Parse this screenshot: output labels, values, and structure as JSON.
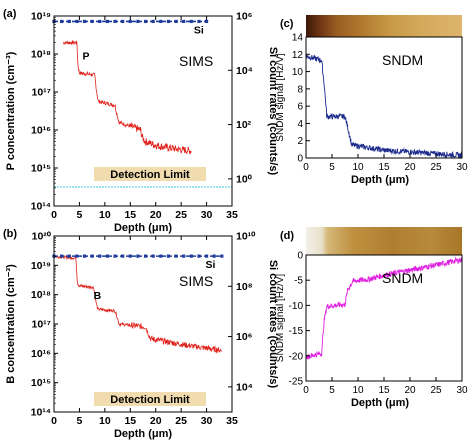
{
  "chart_data": [
    {
      "panel": "(a)",
      "type": "line",
      "in_plot_label": "SIMS",
      "xlabel": "Depth (μm)",
      "ylabel": "P concentration (cm⁻³)",
      "y2label": "Si count rates (counts/s)",
      "xlim": [
        0,
        35
      ],
      "ylim_log10": [
        14,
        19
      ],
      "y2lim_log10": [
        -1,
        6
      ],
      "x_ticks": [
        "0",
        "5",
        "10",
        "15",
        "20",
        "25",
        "30",
        "35"
      ],
      "y_ticks": [
        "10¹⁴",
        "10¹⁵",
        "10¹⁶",
        "10¹⁷",
        "10¹⁸",
        "10¹⁹"
      ],
      "y2_ticks": [
        "10⁰",
        "10²",
        "10⁴",
        "10⁶"
      ],
      "annotations": {
        "p_label": "P",
        "si_label": "Si",
        "detection": "Detection Limit"
      },
      "detection_limit_log10": 14.5,
      "series": [
        {
          "name": "P",
          "color": "#e0201a",
          "x": [
            1.8,
            4.5,
            4.7,
            5.0,
            8.0,
            8.3,
            8.7,
            12.0,
            12.3,
            12.8,
            17.0,
            17.4,
            17.9,
            20.0,
            24.0,
            27.0
          ],
          "y_log10": [
            18.3,
            18.3,
            17.7,
            17.5,
            17.45,
            17.1,
            16.75,
            16.65,
            16.45,
            16.2,
            16.0,
            15.8,
            15.7,
            15.6,
            15.5,
            15.45
          ]
        },
        {
          "name": "Si",
          "color": "#1f3c9c",
          "x": [
            0,
            30
          ],
          "y2_log10": [
            5.8,
            5.8
          ]
        }
      ]
    },
    {
      "panel": "(b)",
      "type": "line",
      "in_plot_label": "SIMS",
      "xlabel": "Depth (μm)",
      "ylabel": "B concentration (cm⁻³)",
      "y2label": "Si count rates (counts/s)",
      "xlim": [
        0,
        35
      ],
      "ylim_log10": [
        14,
        20
      ],
      "y2lim_log10": [
        3,
        10
      ],
      "x_ticks": [
        "0",
        "5",
        "10",
        "15",
        "20",
        "25",
        "30",
        "35"
      ],
      "y_ticks": [
        "10¹⁴",
        "10¹⁵",
        "10¹⁶",
        "10¹⁷",
        "10¹⁸",
        "10¹⁹",
        "10²⁰"
      ],
      "y2_ticks": [
        "10⁴",
        "10⁶",
        "10⁸",
        "10¹⁰"
      ],
      "annotations": {
        "b_label": "B",
        "si_label": "Si",
        "detection": "Detection Limit"
      },
      "detection_limit_log10": 14.0,
      "series": [
        {
          "name": "B",
          "color": "#e0201a",
          "x": [
            0.3,
            4.3,
            4.6,
            5.0,
            7.8,
            8.2,
            8.6,
            12.0,
            12.4,
            12.8,
            18.0,
            18.5,
            19.0,
            22.0,
            27.0,
            33.0
          ],
          "y_log10": [
            19.3,
            19.25,
            18.4,
            18.3,
            18.25,
            17.8,
            17.5,
            17.45,
            17.25,
            17.0,
            16.9,
            16.7,
            16.5,
            16.4,
            16.25,
            16.1
          ]
        },
        {
          "name": "Si",
          "color": "#1f3c9c",
          "x": [
            0,
            33
          ],
          "y2_log10": [
            9.2,
            9.2
          ]
        }
      ]
    },
    {
      "panel": "(c)",
      "type": "line",
      "in_plot_label": "SNDM",
      "xlabel": "Depth (μm)",
      "ylabel": "SNDM signal [Hz/V]",
      "xlim": [
        0,
        30
      ],
      "ylim": [
        0,
        14
      ],
      "x_ticks": [
        "0",
        "5",
        "10",
        "15",
        "20",
        "25",
        "30"
      ],
      "y_ticks": [
        "0",
        "2",
        "4",
        "6",
        "8",
        "10",
        "12",
        "14"
      ],
      "series": [
        {
          "name": "SNDM",
          "color": "#1c2a8c",
          "x": [
            0,
            3.0,
            3.5,
            4.0,
            7.5,
            8.0,
            8.8,
            12,
            15,
            20,
            25,
            30
          ],
          "y": [
            11.8,
            11.3,
            8.5,
            4.8,
            4.8,
            3.6,
            1.5,
            1.2,
            0.9,
            0.7,
            0.5,
            0.3
          ]
        }
      ]
    },
    {
      "panel": "(d)",
      "type": "line",
      "in_plot_label": "SNDM",
      "xlabel": "Depth (μm)",
      "ylabel": "SNDM signal [Hz/V]",
      "xlim": [
        0,
        30
      ],
      "ylim": [
        -25,
        0
      ],
      "x_ticks": [
        "0",
        "5",
        "10",
        "15",
        "20",
        "25",
        "30"
      ],
      "y_ticks": [
        "-25",
        "-20",
        "-15",
        "-10",
        "-5",
        "0"
      ],
      "series": [
        {
          "name": "SNDM",
          "color": "#e020e0",
          "x": [
            0,
            3.0,
            3.5,
            4.0,
            7.5,
            8.0,
            9.0,
            12,
            15,
            20,
            25,
            30
          ],
          "y": [
            -20.2,
            -19.5,
            -13.0,
            -10.2,
            -9.8,
            -7.0,
            -5.2,
            -4.8,
            -4.0,
            -3.0,
            -2.0,
            -0.9
          ]
        }
      ]
    }
  ],
  "colors": {
    "sims_red": "#e0201a",
    "si_blue": "#1f3c9c",
    "sndm_blue": "#1c2a8c",
    "sndm_magenta": "#e020e0",
    "detection_box": "#f1dcb0",
    "detection_line": "#3ec8d8"
  }
}
